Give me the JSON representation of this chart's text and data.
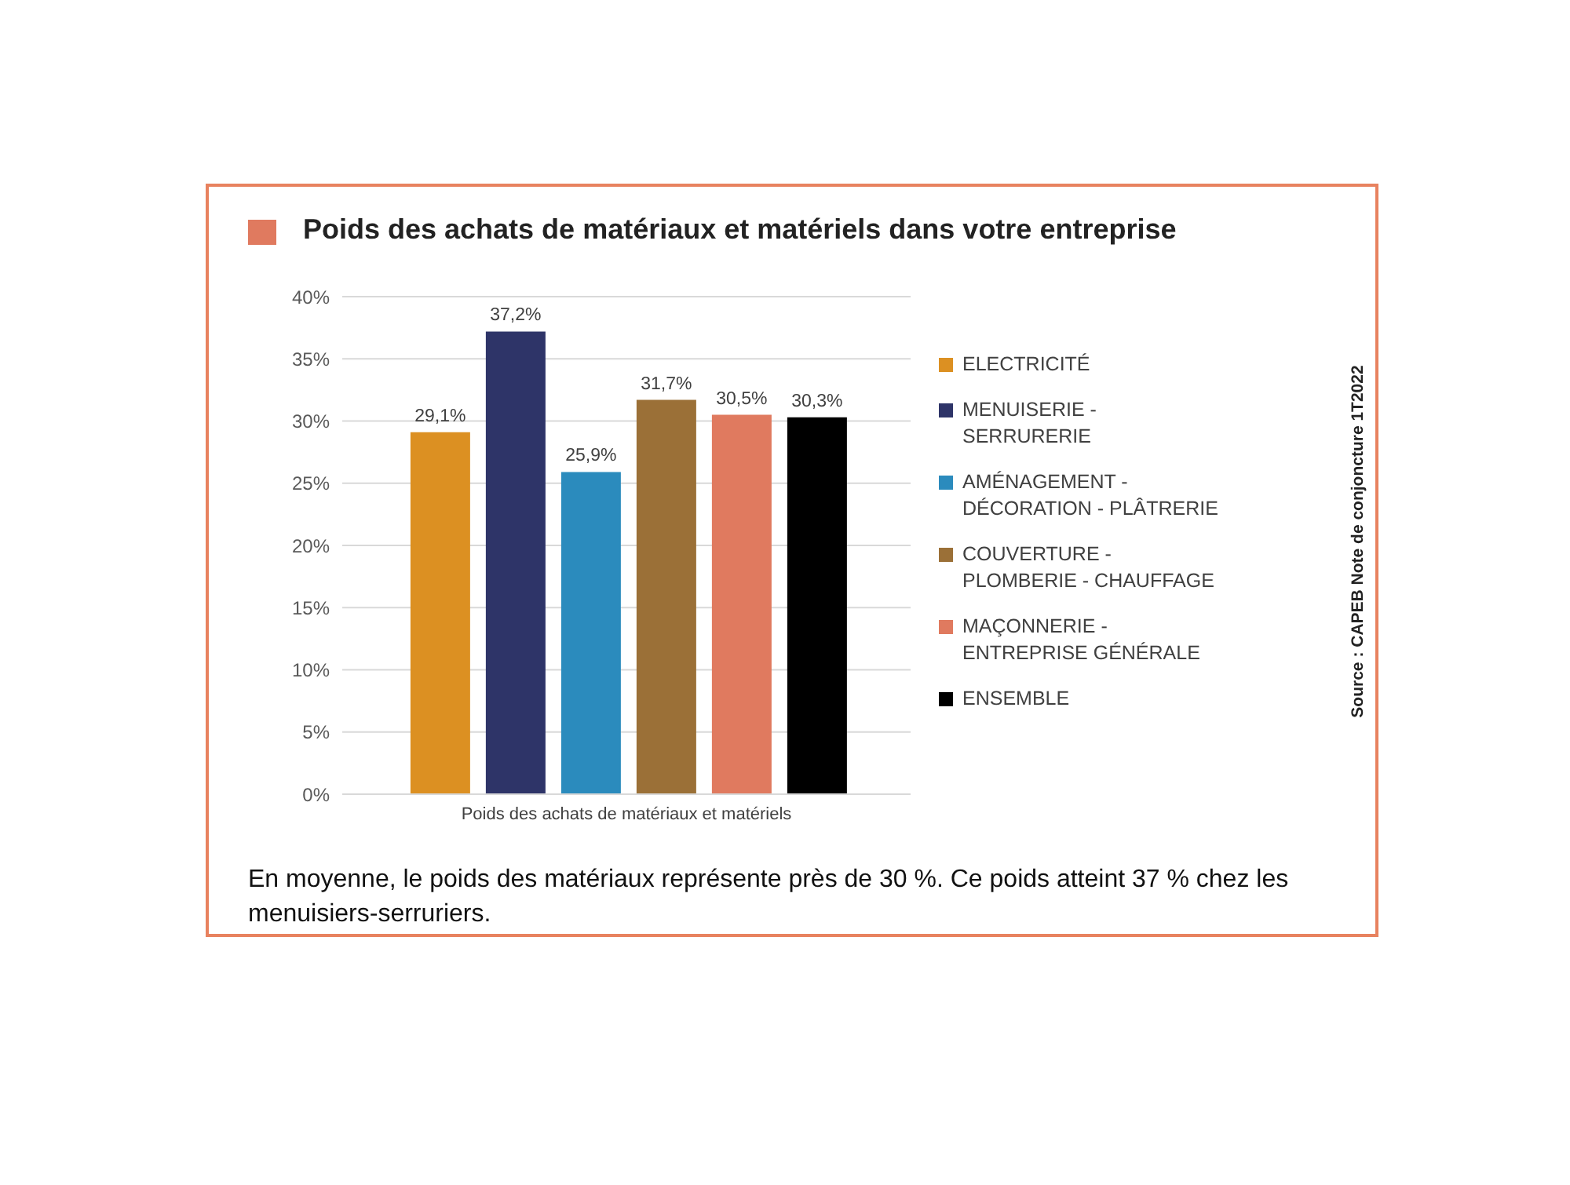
{
  "chart_data": {
    "type": "bar",
    "title": "Poids des achats de matériaux et matériels dans votre entreprise",
    "categories": [
      "Poids des achats de matériaux et matériels"
    ],
    "series": [
      {
        "name": "ELECTRICITÉ",
        "color": "#dc9022",
        "values": [
          29.1
        ],
        "value_labels": [
          "29,1%"
        ]
      },
      {
        "name": "MENUISERIE - SERRURERIE",
        "color": "#2e3468",
        "values": [
          37.2
        ],
        "value_labels": [
          "37,2%"
        ]
      },
      {
        "name": "AMÉNAGEMENT - DÉCORATION - PLÂTRERIE",
        "color": "#2b8bbd",
        "values": [
          25.9
        ],
        "value_labels": [
          "25,9%"
        ]
      },
      {
        "name": "COUVERTURE - PLOMBERIE - CHAUFFAGE",
        "color": "#9b7037",
        "values": [
          31.7
        ],
        "value_labels": [
          "31,7%"
        ]
      },
      {
        "name": "MAÇONNERIE - ENTREPRISE GÉNÉRALE",
        "color": "#e07a5f",
        "values": [
          30.5
        ],
        "value_labels": [
          "30,5%"
        ]
      },
      {
        "name": "ENSEMBLE",
        "color": "#000000",
        "values": [
          30.3
        ],
        "value_labels": [
          "30,3%"
        ]
      }
    ],
    "ylim": [
      0,
      40
    ],
    "yticks": [
      {
        "value": 0,
        "label": "0%"
      },
      {
        "value": 5,
        "label": "5%"
      },
      {
        "value": 10,
        "label": "10%"
      },
      {
        "value": 15,
        "label": "15%"
      },
      {
        "value": 20,
        "label": "20%"
      },
      {
        "value": 25,
        "label": "25%"
      },
      {
        "value": 30,
        "label": "30%"
      },
      {
        "value": 35,
        "label": "35%"
      },
      {
        "value": 40,
        "label": "40%"
      }
    ],
    "grid": "y",
    "legend": "right",
    "annotations": [
      "Source : CAPEB Note de conjoncture 1T2022",
      "En moyenne, le poids des matériaux représente près de 30 %. Ce poids atteint 37 % chez les menuisiers-serruriers."
    ]
  }
}
